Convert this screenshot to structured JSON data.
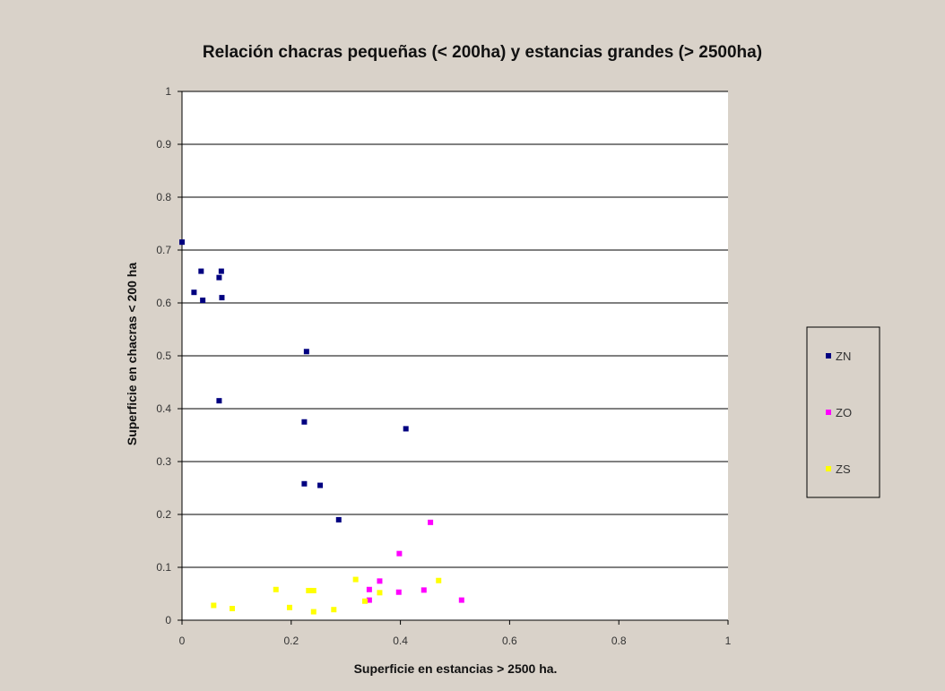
{
  "chart_data": {
    "type": "scatter",
    "title": "Relación chacras pequeñas (< 200ha) y estancias grandes (> 2500ha)",
    "xlabel": "Superficie en estancias > 2500 ha.",
    "ylabel": "Superficie en chacras < 200 ha",
    "xlim": [
      0,
      1
    ],
    "ylim": [
      0,
      1
    ],
    "xticks": [
      "0",
      "0.2",
      "0.4",
      "0.6",
      "0.8",
      "1"
    ],
    "yticks": [
      "0",
      "0.1",
      "0.2",
      "0.3",
      "0.4",
      "0.5",
      "0.6",
      "0.7",
      "0.8",
      "0.9",
      "1"
    ],
    "grid": "horizontal",
    "legend_position": "right",
    "series": [
      {
        "name": "ZN",
        "color": "#000080",
        "points": [
          [
            0.0,
            0.715
          ],
          [
            0.035,
            0.66
          ],
          [
            0.072,
            0.66
          ],
          [
            0.022,
            0.62
          ],
          [
            0.068,
            0.648
          ],
          [
            0.038,
            0.605
          ],
          [
            0.073,
            0.61
          ],
          [
            0.228,
            0.508
          ],
          [
            0.068,
            0.415
          ],
          [
            0.224,
            0.375
          ],
          [
            0.41,
            0.362
          ],
          [
            0.224,
            0.258
          ],
          [
            0.253,
            0.255
          ],
          [
            0.287,
            0.19
          ]
        ]
      },
      {
        "name": "ZO",
        "color": "#ff00ff",
        "points": [
          [
            0.455,
            0.185
          ],
          [
            0.398,
            0.126
          ],
          [
            0.362,
            0.074
          ],
          [
            0.343,
            0.058
          ],
          [
            0.397,
            0.053
          ],
          [
            0.443,
            0.057
          ],
          [
            0.512,
            0.038
          ],
          [
            0.343,
            0.038
          ]
        ]
      },
      {
        "name": "ZS",
        "color": "#ffff00",
        "points": [
          [
            0.318,
            0.077
          ],
          [
            0.47,
            0.075
          ],
          [
            0.172,
            0.058
          ],
          [
            0.232,
            0.056
          ],
          [
            0.241,
            0.056
          ],
          [
            0.362,
            0.052
          ],
          [
            0.335,
            0.036
          ],
          [
            0.058,
            0.028
          ],
          [
            0.197,
            0.024
          ],
          [
            0.092,
            0.022
          ],
          [
            0.278,
            0.02
          ],
          [
            0.241,
            0.016
          ]
        ]
      }
    ]
  }
}
